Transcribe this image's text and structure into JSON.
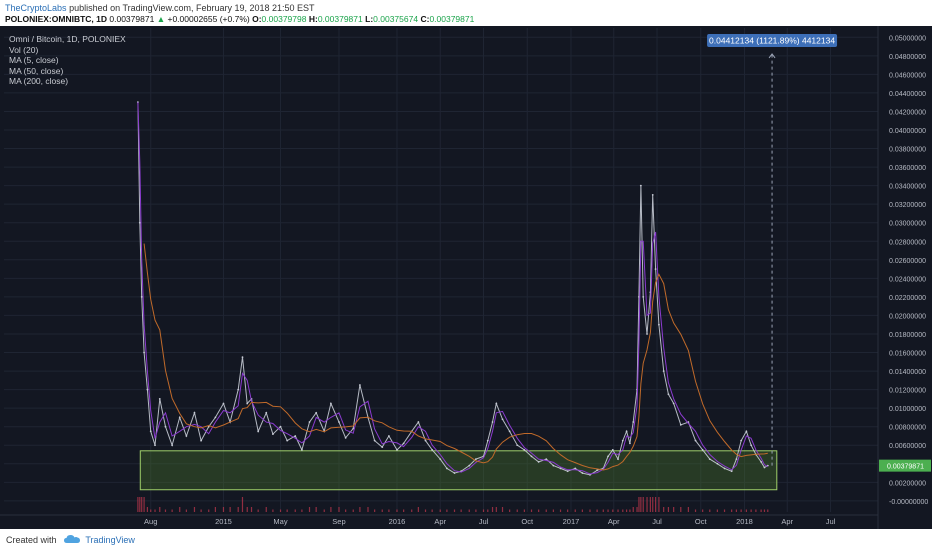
{
  "header": {
    "author": "TheCryptoLabs",
    "published_text": "published on TradingView.com, February 19, 2018 21:50 EST",
    "symbol": "POLONIEX:OMNIBTC, 1D",
    "last": "0.00379871",
    "change": "+0.00002655 (+0.7%)",
    "o_label": "O:",
    "o_value": "0.00379798",
    "h_label": "H:",
    "h_value": "0.00379871",
    "l_label": "L:",
    "l_value": "0.00375674",
    "c_label": "C:",
    "c_value": "0.00379871"
  },
  "legend": {
    "title": "Omni / Bitcoin, 1D, POLONIEX",
    "items": [
      "Vol (20)",
      "MA (5, close)",
      "MA (50, close)",
      "MA (200, close)"
    ]
  },
  "measure_label": "0.04412134 (1121.89%) 4412134",
  "price_tag": "0.00379871",
  "footer": {
    "created_with": "Created with",
    "brand": "TradingView"
  },
  "colors": {
    "background": "#131722",
    "price_line": "#c8ccd6",
    "ma5": "#8b3bd0",
    "ma50": "#c06a2a",
    "zone_fill": "#4c7a2a",
    "zone_border": "#9fcf6a",
    "volume": "#b2344a",
    "measure": "#3d6fb8",
    "price_tag": "#4caf50"
  },
  "chart_data": {
    "type": "line",
    "title": "Omni / Bitcoin, 1D, POLONIEX",
    "x_ticks": [
      "Aug",
      "2015",
      "May",
      "Sep",
      "2016",
      "Apr",
      "Jul",
      "Oct",
      "2017",
      "Apr",
      "Jul",
      "Oct",
      "2018",
      "Apr",
      "Jul"
    ],
    "y_ticks": [
      "0.05000000",
      "0.04800000",
      "0.04600000",
      "0.04400000",
      "0.04200000",
      "0.04000000",
      "0.03800000",
      "0.03600000",
      "0.03400000",
      "0.03200000",
      "0.03000000",
      "0.02800000",
      "0.02600000",
      "0.02400000",
      "0.02200000",
      "0.02000000",
      "0.01800000",
      "0.01600000",
      "0.01400000",
      "0.01200000",
      "0.01000000",
      "0.00800000",
      "0.00600000",
      "0.00400000",
      "0.00200000",
      "-0.00000000"
    ],
    "ylim": [
      -0.0012,
      0.051
    ],
    "series": [
      {
        "values": [
          [
            "2014-07-05",
            0.043
          ],
          [
            "2014-07-09",
            0.03
          ],
          [
            "2014-07-13",
            0.022
          ],
          [
            "2014-07-18",
            0.016
          ],
          [
            "2014-07-25",
            0.012
          ],
          [
            "2014-08-01",
            0.0075
          ],
          [
            "2014-08-10",
            0.006
          ],
          [
            "2014-08-20",
            0.011
          ],
          [
            "2014-09-01",
            0.008
          ],
          [
            "2014-09-15",
            0.006
          ],
          [
            "2014-10-01",
            0.009
          ],
          [
            "2014-10-15",
            0.007
          ],
          [
            "2014-11-01",
            0.0095
          ],
          [
            "2014-11-15",
            0.0065
          ],
          [
            "2014-12-01",
            0.008
          ],
          [
            "2014-12-15",
            0.009
          ],
          [
            "2015-01-01",
            0.0105
          ],
          [
            "2015-01-15",
            0.0085
          ],
          [
            "2015-02-01",
            0.012
          ],
          [
            "2015-02-10",
            0.0155
          ],
          [
            "2015-02-20",
            0.0105
          ],
          [
            "2015-03-01",
            0.011
          ],
          [
            "2015-03-15",
            0.0075
          ],
          [
            "2015-04-01",
            0.0095
          ],
          [
            "2015-04-15",
            0.0072
          ],
          [
            "2015-05-01",
            0.008
          ],
          [
            "2015-05-15",
            0.0065
          ],
          [
            "2015-06-01",
            0.007
          ],
          [
            "2015-06-15",
            0.0055
          ],
          [
            "2015-07-01",
            0.0085
          ],
          [
            "2015-07-15",
            0.0095
          ],
          [
            "2015-08-01",
            0.0075
          ],
          [
            "2015-08-15",
            0.0105
          ],
          [
            "2015-09-01",
            0.0085
          ],
          [
            "2015-09-15",
            0.0068
          ],
          [
            "2015-10-01",
            0.0078
          ],
          [
            "2015-10-15",
            0.0125
          ],
          [
            "2015-11-01",
            0.009
          ],
          [
            "2015-11-15",
            0.0065
          ],
          [
            "2015-12-01",
            0.0058
          ],
          [
            "2015-12-15",
            0.007
          ],
          [
            "2016-01-01",
            0.0055
          ],
          [
            "2016-01-15",
            0.0062
          ],
          [
            "2016-02-01",
            0.0075
          ],
          [
            "2016-02-15",
            0.0085
          ],
          [
            "2016-03-01",
            0.0065
          ],
          [
            "2016-03-15",
            0.0055
          ],
          [
            "2016-04-01",
            0.0045
          ],
          [
            "2016-04-15",
            0.0035
          ],
          [
            "2016-05-01",
            0.003
          ],
          [
            "2016-05-15",
            0.0032
          ],
          [
            "2016-06-01",
            0.0038
          ],
          [
            "2016-06-15",
            0.0045
          ],
          [
            "2016-07-01",
            0.0048
          ],
          [
            "2016-07-10",
            0.0065
          ],
          [
            "2016-07-20",
            0.0085
          ],
          [
            "2016-07-28",
            0.0105
          ],
          [
            "2016-08-10",
            0.0088
          ],
          [
            "2016-08-25",
            0.0075
          ],
          [
            "2016-09-10",
            0.006
          ],
          [
            "2016-09-25",
            0.0055
          ],
          [
            "2016-10-10",
            0.0048
          ],
          [
            "2016-10-25",
            0.0042
          ],
          [
            "2016-11-10",
            0.0045
          ],
          [
            "2016-11-25",
            0.0038
          ],
          [
            "2016-12-10",
            0.0035
          ],
          [
            "2016-12-25",
            0.0032
          ],
          [
            "2017-01-10",
            0.0035
          ],
          [
            "2017-01-25",
            0.003
          ],
          [
            "2017-02-10",
            0.0028
          ],
          [
            "2017-02-25",
            0.0033
          ],
          [
            "2017-03-10",
            0.0035
          ],
          [
            "2017-03-20",
            0.0048
          ],
          [
            "2017-03-30",
            0.0055
          ],
          [
            "2017-04-10",
            0.0045
          ],
          [
            "2017-04-20",
            0.0065
          ],
          [
            "2017-04-28",
            0.0075
          ],
          [
            "2017-05-05",
            0.0062
          ],
          [
            "2017-05-12",
            0.0085
          ],
          [
            "2017-05-20",
            0.012
          ],
          [
            "2017-05-24",
            0.022
          ],
          [
            "2017-05-28",
            0.034
          ],
          [
            "2017-06-02",
            0.022
          ],
          [
            "2017-06-10",
            0.018
          ],
          [
            "2017-06-17",
            0.0225
          ],
          [
            "2017-06-22",
            0.033
          ],
          [
            "2017-06-28",
            0.025
          ],
          [
            "2017-07-05",
            0.019
          ],
          [
            "2017-07-15",
            0.014
          ],
          [
            "2017-07-25",
            0.0115
          ],
          [
            "2017-08-05",
            0.0105
          ],
          [
            "2017-08-20",
            0.0082
          ],
          [
            "2017-09-05",
            0.0085
          ],
          [
            "2017-09-20",
            0.0065
          ],
          [
            "2017-10-05",
            0.0055
          ],
          [
            "2017-10-20",
            0.0045
          ],
          [
            "2017-11-05",
            0.004
          ],
          [
            "2017-11-20",
            0.0035
          ],
          [
            "2017-12-05",
            0.0032
          ],
          [
            "2017-12-15",
            0.0045
          ],
          [
            "2017-12-25",
            0.0065
          ],
          [
            "2018-01-05",
            0.0075
          ],
          [
            "2018-01-15",
            0.006
          ],
          [
            "2018-01-25",
            0.005
          ],
          [
            "2018-02-05",
            0.0042
          ],
          [
            "2018-02-12",
            0.0036
          ],
          [
            "2018-02-19",
            0.0038
          ]
        ]
      }
    ],
    "support_zone": {
      "x_start": "2014-07-10",
      "x_end": "2018-03-10",
      "y_low": 0.0012,
      "y_high": 0.0054
    },
    "measure": {
      "date": "2018-02-28",
      "y_from": 0.0038,
      "y_to": 0.0482
    }
  }
}
